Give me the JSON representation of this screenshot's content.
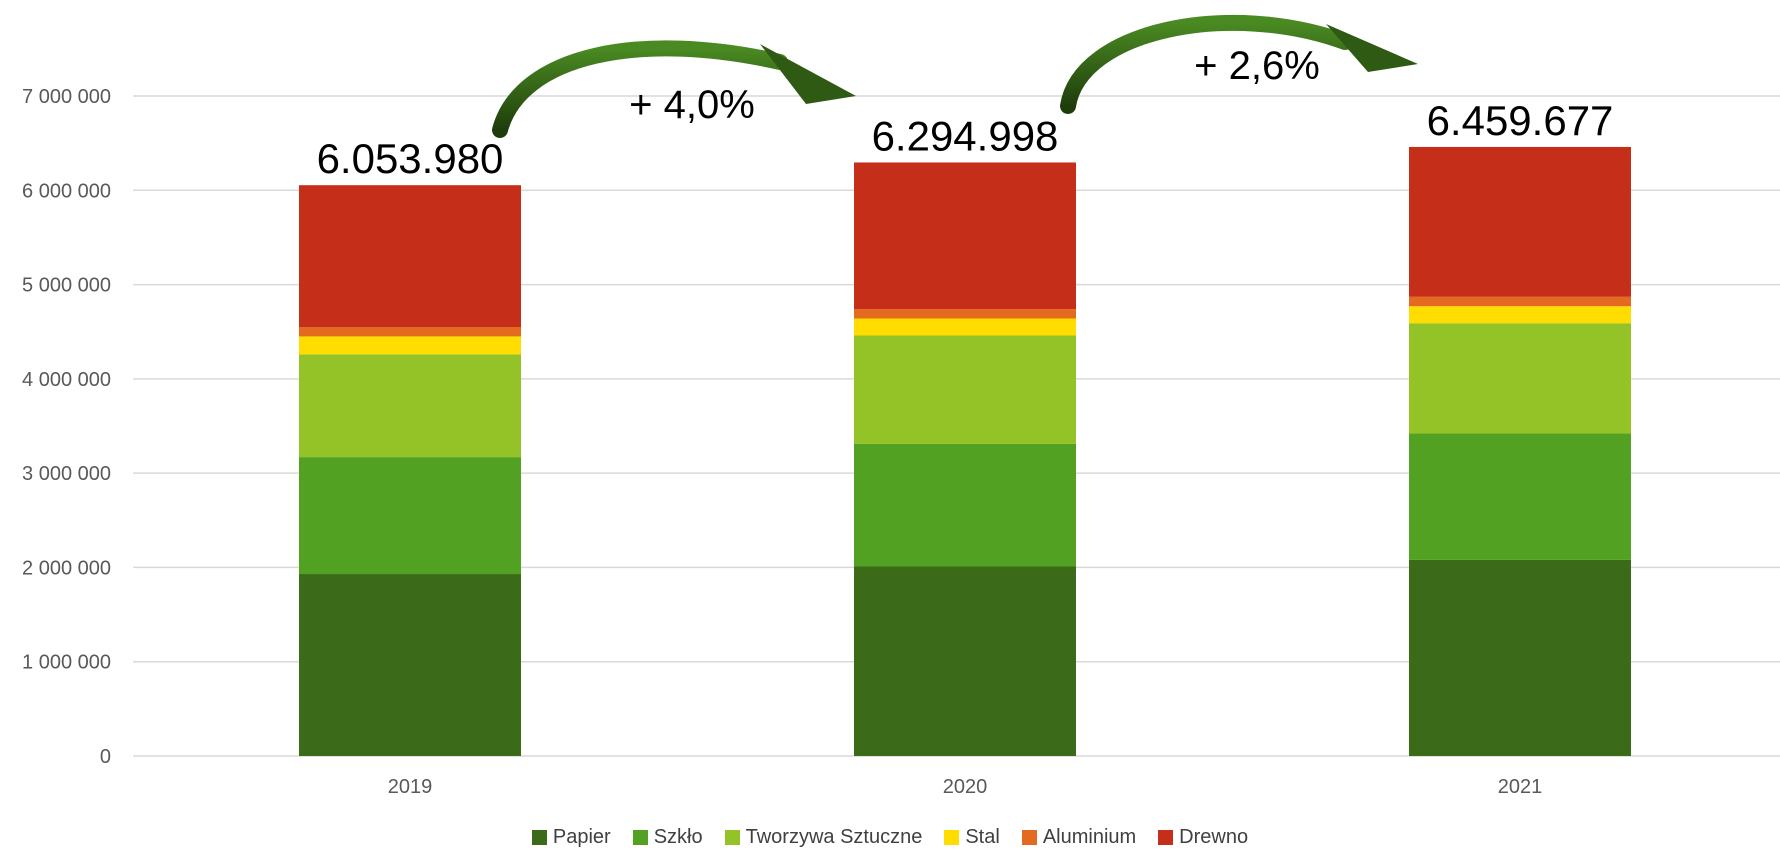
{
  "chart_data": {
    "type": "bar",
    "stacked": true,
    "categories": [
      "2019",
      "2020",
      "2021"
    ],
    "series": [
      {
        "name": "Papier",
        "color": "#3b6b19",
        "values": [
          1930000,
          2010000,
          2080000
        ]
      },
      {
        "name": "Szkło",
        "color": "#52a123",
        "values": [
          1240000,
          1300000,
          1340000
        ]
      },
      {
        "name": "Tworzywa Sztuczne",
        "color": "#93c326",
        "values": [
          1090000,
          1150000,
          1170000
        ]
      },
      {
        "name": "Stal",
        "color": "#ffdd00",
        "values": [
          190000,
          180000,
          180000
        ]
      },
      {
        "name": "Aluminium",
        "color": "#e46a1f",
        "values": [
          100000,
          100000,
          100000
        ]
      },
      {
        "name": "Drewno",
        "color": "#c52f1a",
        "values": [
          1503980,
          1554998,
          1589677
        ]
      }
    ],
    "totals": [
      "6.053.980",
      "6.294.998",
      "6.459.677"
    ],
    "growth_labels": [
      "+ 4,0%",
      "+ 2,6%"
    ],
    "ylim": [
      0,
      7000000
    ],
    "yticks": [
      0,
      1000000,
      2000000,
      3000000,
      4000000,
      5000000,
      6000000,
      7000000
    ],
    "ytick_labels": [
      "0",
      "1 000 000",
      "2 000 000",
      "3 000 000",
      "4 000 000",
      "5 000 000",
      "6 000 000",
      "7 000 000"
    ],
    "grid": true,
    "legend_position": "bottom",
    "arrow_color": "#2f5a14"
  }
}
